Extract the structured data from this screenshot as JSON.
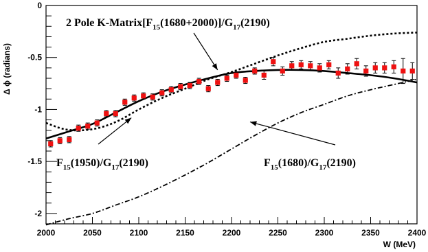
{
  "chart_data": {
    "type": "scatter",
    "xlabel": "W (MeV)",
    "ylabel": "Δ ϕ (radians)",
    "xlim": [
      2000,
      2400
    ],
    "ylim": [
      -2.1,
      0
    ],
    "x_ticks": [
      "2000",
      "2050",
      "2100",
      "2150",
      "2200",
      "2250",
      "2300",
      "2350",
      "2400"
    ],
    "y_ticks": [
      "0",
      "-0.5",
      "-1",
      "-1.5",
      "-2"
    ],
    "grid": false,
    "colors": {
      "data": "#ee1111",
      "curves": "#000000"
    },
    "series": [
      {
        "style": "red-square-markers",
        "x": [
          2005,
          2015,
          2025,
          2035,
          2045,
          2055,
          2065,
          2075,
          2085,
          2095,
          2105,
          2115,
          2125,
          2135,
          2145,
          2155,
          2165,
          2175,
          2185,
          2195,
          2205,
          2215,
          2225,
          2235,
          2245,
          2255,
          2265,
          2275,
          2285,
          2295,
          2305,
          2315,
          2325,
          2335,
          2345,
          2355,
          2365,
          2375,
          2385,
          2395
        ],
        "y": [
          -1.33,
          -1.3,
          -1.29,
          -1.18,
          -1.16,
          -1.13,
          -1.04,
          -1.04,
          -0.93,
          -0.89,
          -0.87,
          -0.88,
          -0.84,
          -0.81,
          -0.78,
          -0.77,
          -0.73,
          -0.8,
          -0.74,
          -0.7,
          -0.67,
          -0.72,
          -0.63,
          -0.67,
          -0.54,
          -0.63,
          -0.58,
          -0.57,
          -0.58,
          -0.6,
          -0.57,
          -0.65,
          -0.61,
          -0.56,
          -0.63,
          -0.6,
          -0.6,
          -0.59,
          -0.63,
          -0.63
        ],
        "yerr": [
          0.03,
          0.03,
          0.03,
          0.03,
          0.03,
          0.03,
          0.03,
          0.03,
          0.03,
          0.03,
          0.03,
          0.03,
          0.03,
          0.03,
          0.03,
          0.03,
          0.03,
          0.03,
          0.03,
          0.03,
          0.03,
          0.03,
          0.03,
          0.04,
          0.04,
          0.04,
          0.04,
          0.04,
          0.04,
          0.04,
          0.04,
          0.05,
          0.05,
          0.05,
          0.05,
          0.05,
          0.05,
          0.06,
          0.12,
          0.08
        ]
      },
      {
        "style": "solid",
        "x": [
          2000,
          2025,
          2050,
          2075,
          2100,
          2125,
          2150,
          2175,
          2200,
          2225,
          2250,
          2275,
          2300,
          2325,
          2350,
          2375,
          2400
        ],
        "y": [
          -1.28,
          -1.21,
          -1.14,
          -1.03,
          -0.92,
          -0.83,
          -0.76,
          -0.7,
          -0.65,
          -0.63,
          -0.62,
          -0.62,
          -0.63,
          -0.65,
          -0.67,
          -0.7,
          -0.74
        ]
      },
      {
        "style": "dotted",
        "x": [
          2000,
          2020,
          2040,
          2060,
          2080,
          2100,
          2125,
          2150,
          2175,
          2200,
          2225,
          2250,
          2275,
          2300,
          2325,
          2350,
          2375,
          2400
        ],
        "y": [
          -1.13,
          -1.19,
          -1.2,
          -1.17,
          -1.1,
          -1.0,
          -0.89,
          -0.8,
          -0.71,
          -0.64,
          -0.56,
          -0.48,
          -0.41,
          -0.35,
          -0.32,
          -0.29,
          -0.27,
          -0.26
        ]
      },
      {
        "style": "dash-dot",
        "x": [
          2000,
          2025,
          2050,
          2075,
          2100,
          2125,
          2150,
          2175,
          2200,
          2225,
          2250,
          2275,
          2300,
          2325,
          2350,
          2375,
          2400
        ],
        "y": [
          -2.11,
          -2.05,
          -2.0,
          -1.92,
          -1.84,
          -1.74,
          -1.63,
          -1.51,
          -1.38,
          -1.25,
          -1.13,
          -1.03,
          -0.95,
          -0.87,
          -0.81,
          -0.76,
          -0.71
        ]
      }
    ],
    "annotations": [
      {
        "id": "kmatrix",
        "parts": [
          [
            "2 Pole K-Matrix[F",
            ""
          ],
          [
            "15",
            "sub"
          ],
          [
            "(1680+2000)]/G",
            ""
          ],
          [
            "17",
            "sub"
          ],
          [
            "(2190)",
            ""
          ]
        ],
        "arrow_to": [
          2185,
          -0.62
        ]
      },
      {
        "id": "f1950",
        "parts": [
          [
            "F",
            ""
          ],
          [
            "15",
            "sub"
          ],
          [
            "(1950)/G",
            ""
          ],
          [
            "17",
            "sub"
          ],
          [
            "(2190)",
            ""
          ]
        ],
        "arrow_to": [
          2092,
          -1.08
        ]
      },
      {
        "id": "f1680",
        "parts": [
          [
            "F",
            ""
          ],
          [
            "15",
            "sub"
          ],
          [
            "(1680)/G",
            ""
          ],
          [
            "17",
            "sub"
          ],
          [
            "(2190)",
            ""
          ]
        ],
        "arrow_to": [
          2220,
          -1.12
        ]
      }
    ]
  }
}
